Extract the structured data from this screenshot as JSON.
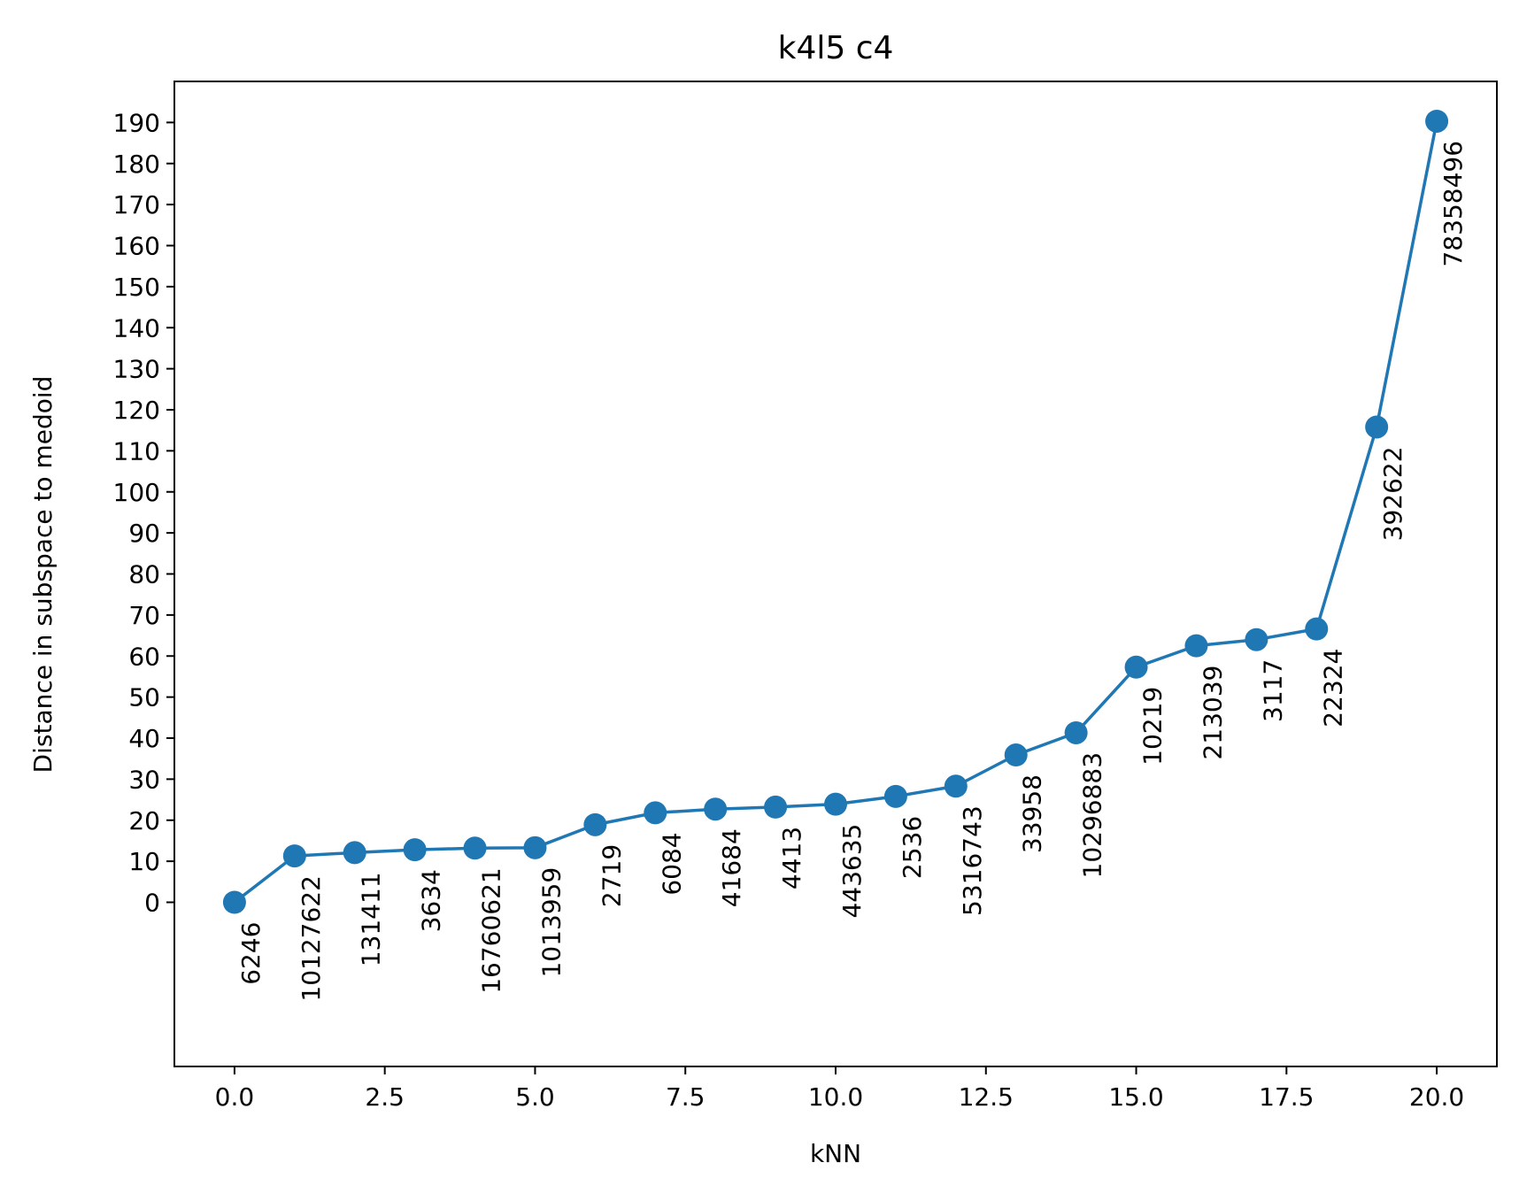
{
  "chart_data": {
    "type": "line",
    "title": "k4l5 c4",
    "xlabel": "kNN",
    "ylabel": "Distance in subspace to medoid",
    "x": [
      0,
      1,
      2,
      3,
      4,
      5,
      6,
      7,
      8,
      9,
      10,
      11,
      12,
      13,
      14,
      15,
      16,
      17,
      18,
      19,
      20
    ],
    "series": [
      {
        "values": [
          0,
          11.3,
          12.1,
          12.8,
          13.2,
          13.3,
          18.9,
          21.8,
          22.7,
          23.2,
          23.9,
          25.8,
          28.3,
          35.9,
          41.3,
          57.3,
          62.5,
          64.0,
          66.6,
          115.8,
          190.3
        ],
        "point_labels": [
          "6246",
          "10127622",
          "131411",
          "3634",
          "16760621",
          "1013959",
          "2719",
          "6084",
          "41684",
          "4413",
          "443635",
          "2536",
          "5316743",
          "33958",
          "10296883",
          "10219",
          "213039",
          "3117",
          "22324",
          "392622",
          "78358496"
        ],
        "color": "#1f77b4"
      }
    ],
    "xlim": [
      -1,
      21
    ],
    "ylim": [
      -40,
      200
    ],
    "x_ticks": [
      "0.0",
      "2.5",
      "5.0",
      "7.5",
      "10.0",
      "12.5",
      "15.0",
      "17.5",
      "20.0"
    ],
    "y_ticks": [
      "0",
      "10",
      "20",
      "30",
      "40",
      "50",
      "60",
      "70",
      "80",
      "90",
      "100",
      "110",
      "120",
      "130",
      "140",
      "150",
      "160",
      "170",
      "180",
      "190"
    ],
    "grid": false,
    "legend": false
  }
}
